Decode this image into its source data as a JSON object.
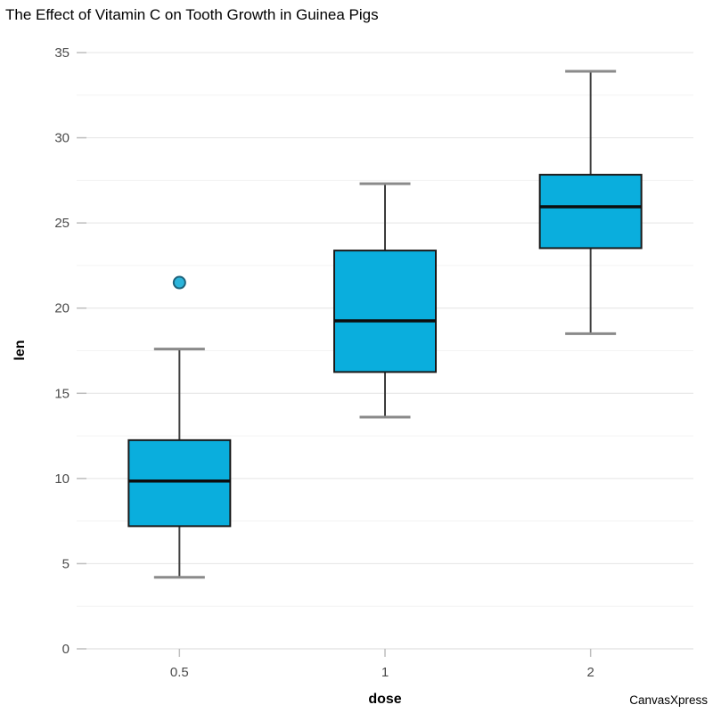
{
  "title": "The Effect of Vitamin C on Tooth Growth in Guinea Pigs",
  "watermark": "CanvasXpress",
  "chart_data": {
    "type": "boxplot",
    "title": "The Effect of Vitamin C on Tooth Growth in Guinea Pigs",
    "xlabel": "dose",
    "ylabel": "len",
    "categories": [
      "0.5",
      "1",
      "2"
    ],
    "ylim": [
      0,
      35
    ],
    "ytick_interval": 5,
    "yticks": [
      0,
      5,
      10,
      15,
      20,
      25,
      30,
      35
    ],
    "minor_tick_interval": 2.5,
    "grid": true,
    "legend_position": "none",
    "series": [
      {
        "category": "0.5",
        "whisker_low": 4.2,
        "q1": 7.2,
        "median": 9.85,
        "q3": 12.25,
        "whisker_high": 17.6,
        "outliers": [
          21.5
        ]
      },
      {
        "category": "1",
        "whisker_low": 13.6,
        "q1": 16.25,
        "median": 19.25,
        "q3": 23.38,
        "whisker_high": 27.3,
        "outliers": []
      },
      {
        "category": "2",
        "whisker_low": 18.5,
        "q1": 23.52,
        "median": 25.95,
        "q3": 27.83,
        "whisker_high": 33.9,
        "outliers": []
      }
    ],
    "colors": {
      "box_fill": "#0aaedd",
      "box_stroke": "#1a1a1a",
      "median": "#0d0d0d",
      "whisker": "#3d3d3d",
      "whisker_cap": "#8a8a8a",
      "outlier_fill": "#2bb4da",
      "outlier_stroke": "#1e637c",
      "grid_major": "#e4e4e4",
      "grid_minor": "#f3f3f3",
      "axis_line": "#d9d9d9",
      "tick": "#bdbdbd",
      "tick_label": "#4a4a4a"
    }
  }
}
